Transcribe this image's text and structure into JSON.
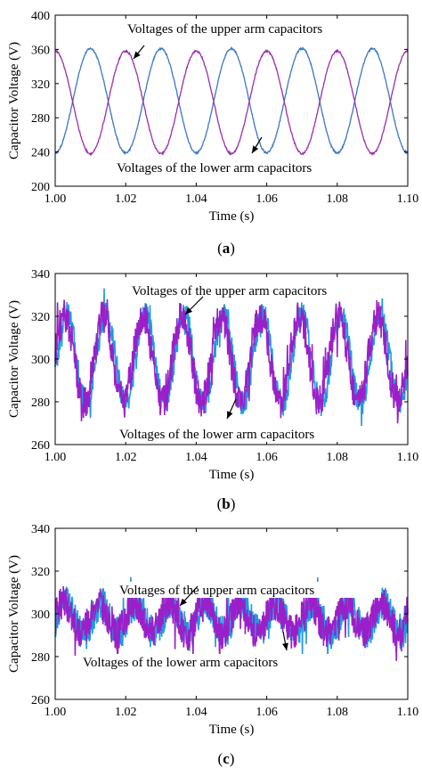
{
  "chart_data": [
    {
      "type": "line",
      "panel_label": "(a)",
      "panel_letter": "a",
      "xlabel": "Time (s)",
      "ylabel": "Capacitor Voltage (V)",
      "xlim": [
        1.0,
        1.1
      ],
      "ylim": [
        200,
        400
      ],
      "xticks": [
        "1.00",
        "1.02",
        "1.04",
        "1.06",
        "1.08",
        "1.10"
      ],
      "yticks": [
        "200",
        "240",
        "280",
        "320",
        "360",
        "400"
      ],
      "grid": false,
      "annotations": [
        "Voltages of the upper arm capacitors",
        "Voltages of the lower arm capacitors"
      ],
      "series": [
        {
          "label": "Voltages of the upper arm capacitors",
          "color": "#3a78c2",
          "dc": 300,
          "amplitude": 61,
          "frequency_hz": 50,
          "minimum_at_s": 1.0,
          "noise": 1
        },
        {
          "label": "Voltages of the lower arm capacitors",
          "color": "#9a2fa8",
          "dc": 298,
          "amplitude": 60,
          "frequency_hz": 50,
          "maximum_at_s": 1.0,
          "noise": 1
        }
      ]
    },
    {
      "type": "line",
      "panel_label": "(b)",
      "panel_letter": "b",
      "xlabel": "Time (s)",
      "ylabel": "Capacitor Voltage (V)",
      "xlim": [
        1.0,
        1.1
      ],
      "ylim": [
        260,
        340
      ],
      "xticks": [
        "1.00",
        "1.02",
        "1.04",
        "1.06",
        "1.08",
        "1.10"
      ],
      "yticks": [
        "260",
        "280",
        "300",
        "320",
        "340"
      ],
      "grid": false,
      "annotations": [
        "Voltages of the upper arm capacitors",
        "Voltages of the lower arm capacitors"
      ],
      "series": [
        {
          "label": "Voltages of the upper arm capacitors",
          "color": "#1f9ae0",
          "dc": 300,
          "amplitude": 21,
          "frequency_hz": 90,
          "noise": 6
        },
        {
          "label": "Voltages of the lower arm capacitors",
          "color": "#9b1fc8",
          "dc": 300,
          "amplitude": 20,
          "frequency_hz": 90,
          "noise": 8
        }
      ]
    },
    {
      "type": "line",
      "panel_label": "(c)",
      "panel_letter": "c",
      "xlabel": "Time (s)",
      "ylabel": "Capacitor Voltage (V)",
      "xlim": [
        1.0,
        1.1
      ],
      "ylim": [
        260,
        340
      ],
      "xticks": [
        "1.00",
        "1.02",
        "1.04",
        "1.06",
        "1.08",
        "1.10"
      ],
      "yticks": [
        "260",
        "280",
        "300",
        "320",
        "340"
      ],
      "grid": false,
      "annotations": [
        "Voltages of the upper arm capacitors",
        "Voltages of the lower arm capacitors"
      ],
      "series": [
        {
          "label": "Voltages of the upper arm capacitors",
          "color": "#1f9ae0",
          "dc": 298,
          "amplitude": 7,
          "frequency_hz": 100,
          "noise": 8
        },
        {
          "label": "Voltages of the lower arm capacitors",
          "color": "#9b1fc8",
          "dc": 298,
          "amplitude": 7,
          "frequency_hz": 100,
          "noise": 8
        }
      ]
    }
  ]
}
